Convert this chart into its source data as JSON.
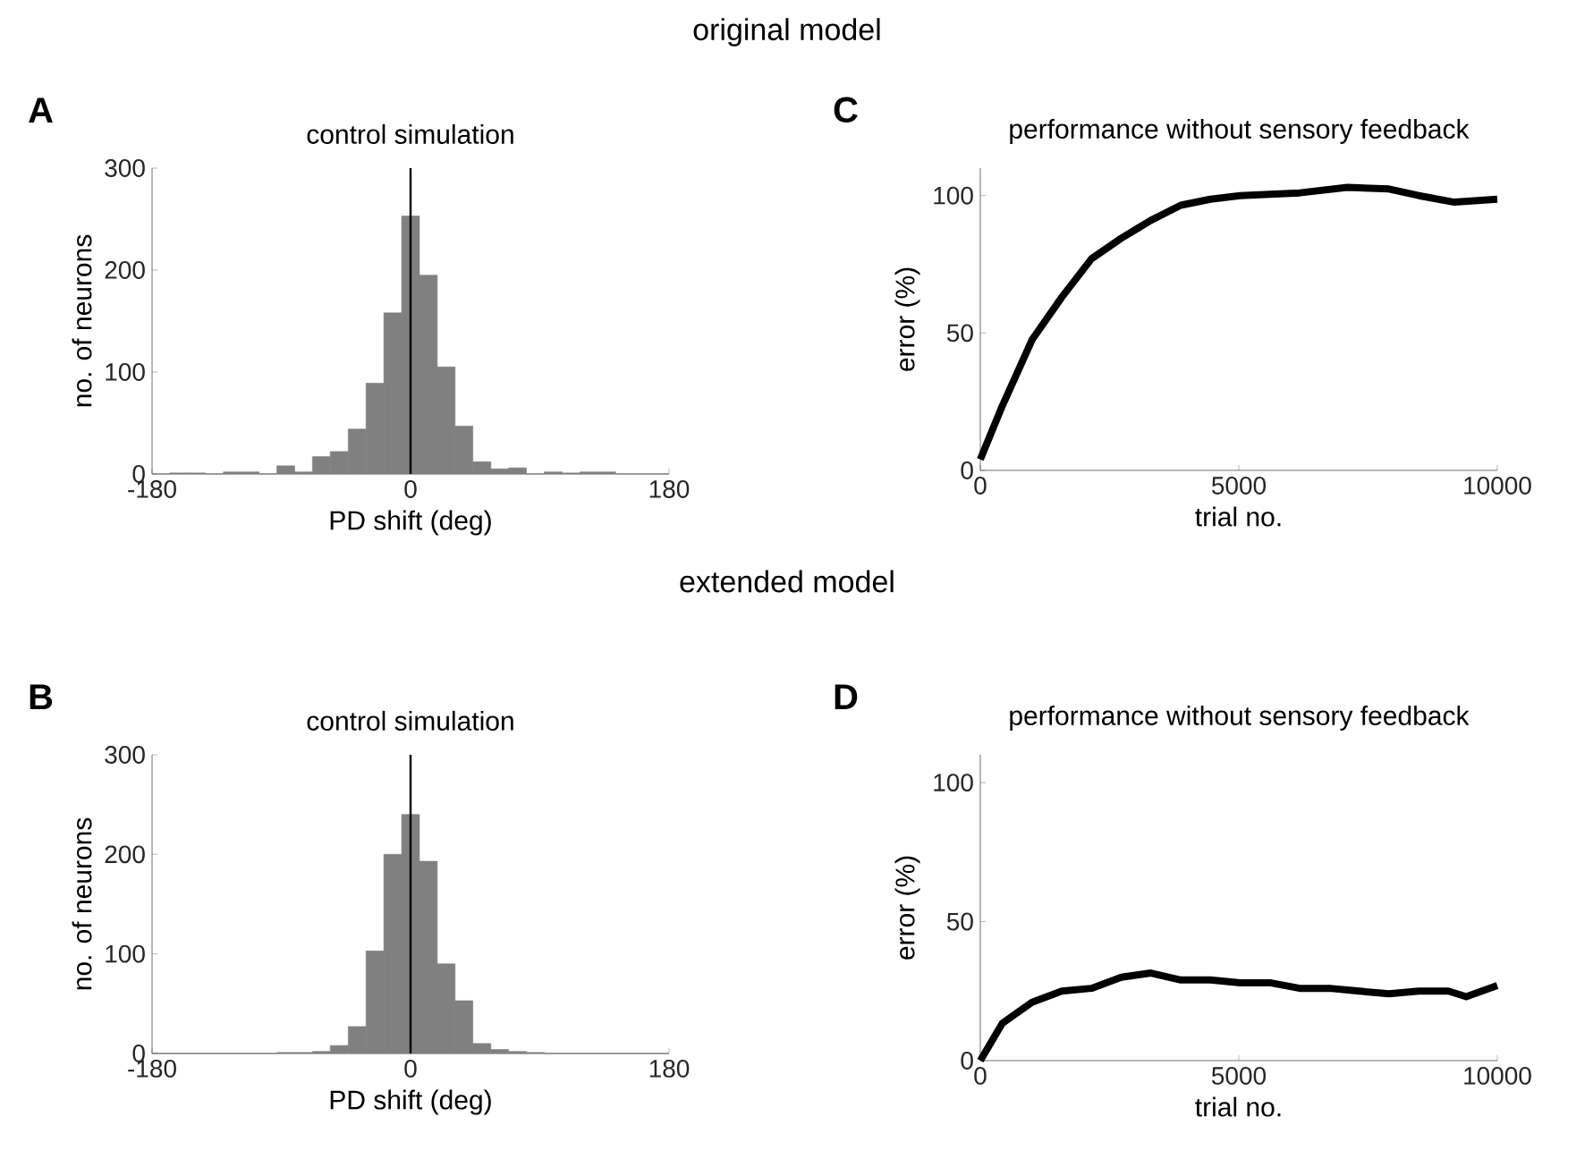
{
  "chart_data": [
    {
      "type": "histogram",
      "title": "control simulation",
      "xlabel": "PD shift (deg)",
      "ylabel": "no. of neurons",
      "annotations": [
        "A",
        "original model"
      ],
      "color": "#808080",
      "bins": [
        -180,
        -167.6,
        -155.2,
        -142.8,
        -130.3,
        -117.9,
        -105.5,
        -93.1,
        -80.7,
        -68.3,
        -55.9,
        -43.4,
        -31.0,
        -18.6,
        -6.2,
        6.2,
        18.6,
        31.0,
        43.4,
        55.9,
        68.3,
        80.7,
        93.1,
        105.5,
        117.9,
        130.3,
        142.8,
        155.2,
        167.6,
        180
      ],
      "values": [
        0,
        1,
        1,
        0,
        2,
        2,
        0,
        8,
        2,
        17,
        22,
        44,
        89,
        158,
        253,
        195,
        105,
        47,
        12,
        5,
        6,
        0,
        2,
        1,
        2,
        2,
        0,
        0,
        0
      ],
      "xlim": [
        -180,
        180
      ],
      "xticks": [
        -180,
        0,
        180
      ],
      "ylim": [
        0,
        300
      ],
      "yticks": [
        0,
        100,
        200,
        300
      ],
      "ref_lines": [
        {
          "axis": "x",
          "value": 0,
          "color": "#000000"
        }
      ]
    },
    {
      "type": "histogram",
      "title": "control simulation",
      "xlabel": "PD shift (deg)",
      "ylabel": "no. of neurons",
      "annotations": [
        "B",
        "extended model"
      ],
      "color": "#808080",
      "bins": [
        -180,
        -167.6,
        -155.2,
        -142.8,
        -130.3,
        -117.9,
        -105.5,
        -93.1,
        -80.7,
        -68.3,
        -55.9,
        -43.4,
        -31.0,
        -18.6,
        -6.2,
        6.2,
        18.6,
        31.0,
        43.4,
        55.9,
        68.3,
        80.7,
        93.1,
        105.5,
        117.9,
        130.3,
        142.8,
        155.2,
        167.6,
        180
      ],
      "values": [
        0,
        0,
        0,
        0,
        0,
        0,
        0,
        1,
        1,
        2,
        8,
        27,
        103,
        200,
        240,
        193,
        90,
        53,
        10,
        4,
        2,
        1,
        0,
        0,
        0,
        0,
        0,
        0,
        0
      ],
      "xlim": [
        -180,
        180
      ],
      "xticks": [
        -180,
        0,
        180
      ],
      "ylim": [
        0,
        300
      ],
      "yticks": [
        0,
        100,
        200,
        300
      ],
      "ref_lines": [
        {
          "axis": "x",
          "value": 0,
          "color": "#000000"
        }
      ]
    },
    {
      "type": "line",
      "title": "performance without sensory feedback",
      "xlabel": "trial no.",
      "ylabel": "error (%)",
      "annotations": [
        "C"
      ],
      "series": [
        {
          "color": "#000000",
          "x": [
            0,
            426,
            1000,
            1576,
            2150,
            2727,
            3300,
            3878,
            4453,
            5029,
            6180,
            7100,
            7905,
            8480,
            9170,
            10000
          ],
          "values": [
            4,
            23.5,
            47.5,
            63,
            77,
            84.5,
            91,
            96.5,
            98.7,
            100,
            101,
            103,
            102.4,
            100,
            97.6,
            98.7
          ]
        }
      ],
      "xlim": [
        0,
        10000
      ],
      "xticks": [
        0,
        5000,
        10000
      ],
      "ylim": [
        0,
        110
      ],
      "yticks": [
        0,
        50,
        100
      ]
    },
    {
      "type": "line",
      "title": "performance without sensory feedback",
      "xlabel": "trial no.",
      "ylabel": "error (%)",
      "annotations": [
        "D"
      ],
      "series": [
        {
          "color": "#000000",
          "x": [
            0,
            426,
            1000,
            1576,
            2150,
            2727,
            3300,
            3878,
            4453,
            5029,
            5600,
            6180,
            6755,
            7330,
            7905,
            8480,
            9055,
            9400,
            10000
          ],
          "values": [
            0,
            13.4,
            21,
            25,
            26,
            30,
            31.5,
            29,
            29,
            28,
            28,
            26,
            26,
            25,
            24,
            25,
            25,
            23,
            27
          ]
        }
      ],
      "xlim": [
        0,
        10000
      ],
      "xticks": [
        0,
        5000,
        10000
      ],
      "ylim": [
        0,
        110
      ],
      "yticks": [
        0,
        50,
        100
      ]
    }
  ]
}
